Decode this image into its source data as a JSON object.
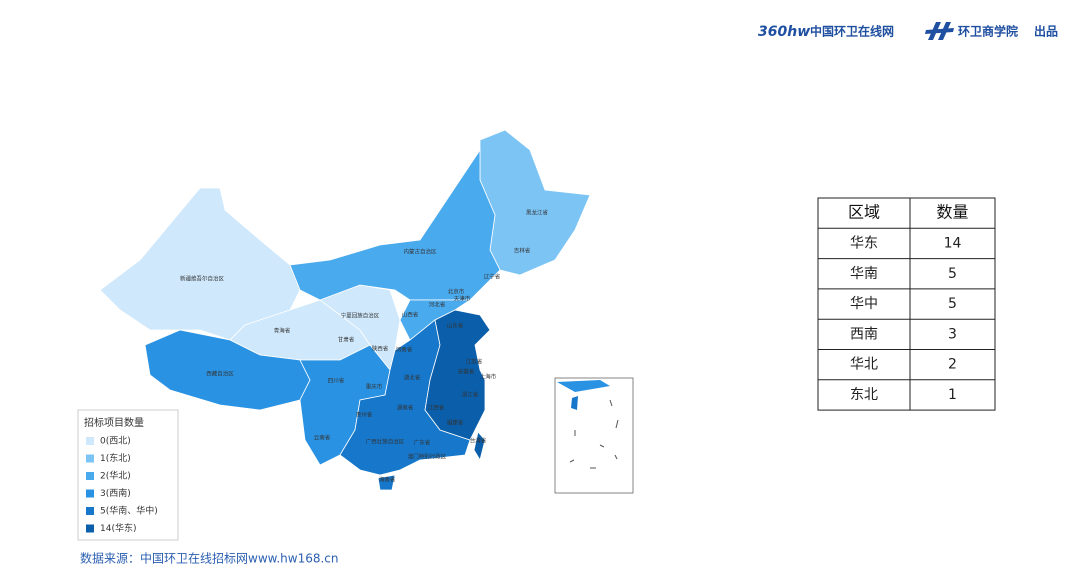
{
  "header": {
    "logo": "360hw",
    "site": "中国环卫在线网",
    "academy": "环卫商学院",
    "suffix": "出品"
  },
  "map": {
    "provinces": [
      "新疆维吾尔自治区",
      "西藏自治区",
      "青海省",
      "甘肃省",
      "内蒙古自治区",
      "黑龙江省",
      "吉林省",
      "辽宁省",
      "北京市",
      "天津市",
      "河北省",
      "山西省",
      "宁夏回族自治区",
      "陕西省",
      "山东省",
      "河南省",
      "江苏省",
      "安徽省",
      "上海市",
      "湖北省",
      "四川省",
      "重庆市",
      "浙江省",
      "湖南省",
      "江西省",
      "贵州省",
      "云南省",
      "福建省",
      "广西壮族自治区",
      "广东省",
      "台湾省",
      "海南省",
      "澳门特别行政区"
    ]
  },
  "legend": {
    "title": "招标项目数量",
    "items": [
      {
        "label": "0(西北)",
        "color": "#cfe8fb"
      },
      {
        "label": "1(东北)",
        "color": "#7cc4f4"
      },
      {
        "label": "2(华北)",
        "color": "#4aaaee"
      },
      {
        "label": "3(西南)",
        "color": "#2a92e2"
      },
      {
        "label": "5(华南、华中)",
        "color": "#1677cb"
      },
      {
        "label": "14(华东)",
        "color": "#0b5ea9"
      }
    ]
  },
  "table": {
    "header": [
      "区域",
      "数量"
    ],
    "rows": [
      [
        "华东",
        14
      ],
      [
        "华南",
        5
      ],
      [
        "华中",
        5
      ],
      [
        "西南",
        3
      ],
      [
        "华北",
        2
      ],
      [
        "东北",
        1
      ]
    ]
  },
  "source": "数据来源：中国环卫在线招标网www.hw168.cn"
}
